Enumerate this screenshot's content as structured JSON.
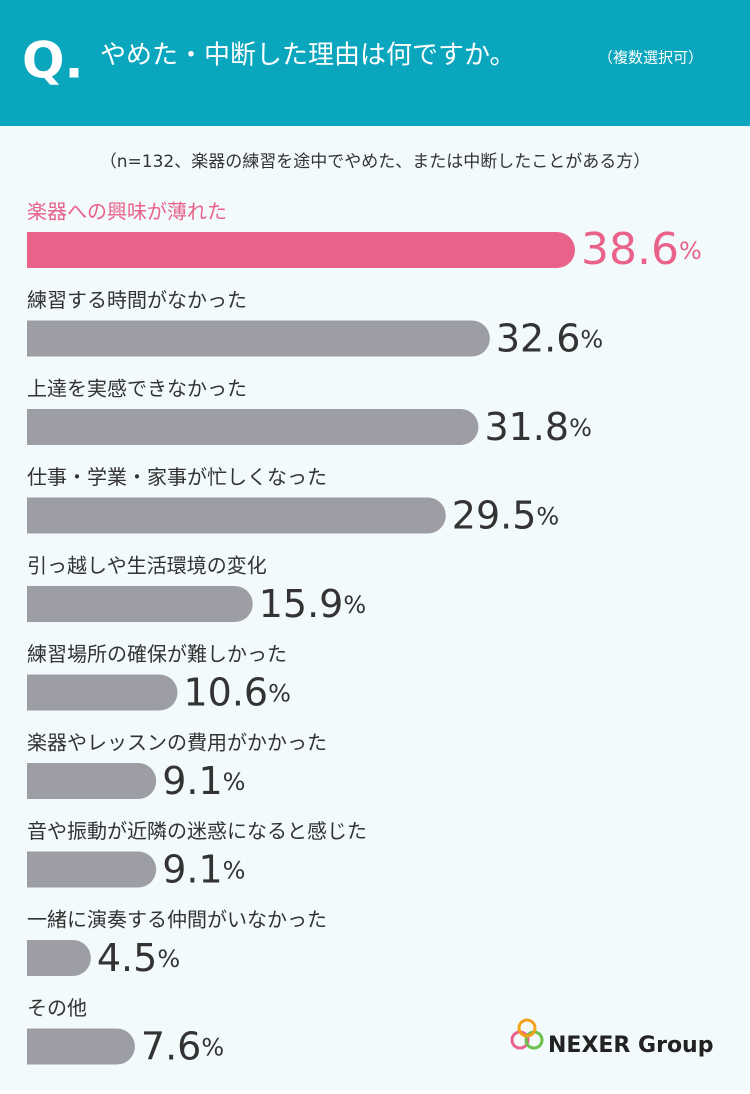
{
  "chart_data": {
    "type": "bar",
    "title_mark": "Q.",
    "title": "やめた・中断した理由は何ですか。",
    "title_note": "（複数選択可）",
    "subtitle": "（n=132、楽器の練習を途中でやめた、または中断したことがある方）",
    "categories": [
      "楽器への興味が薄れた",
      "練習する時間がなかった",
      "上達を実感できなかった",
      "仕事・学業・家事が忙しくなった",
      "引っ越しや生活環境の変化",
      "練習場所の確保が難しかった",
      "楽器やレッスンの費用がかかった",
      "音や振動が近隣の迷惑になると感じた",
      "一緒に演奏する仲間がいなかった",
      "その他"
    ],
    "values": [
      38.6,
      32.6,
      31.8,
      29.5,
      15.9,
      10.6,
      9.1,
      9.1,
      4.5,
      7.6
    ],
    "unit": "%",
    "highlight_color": "#e9628a",
    "color": "#9d9ea5",
    "logo": "NEXER Group"
  }
}
